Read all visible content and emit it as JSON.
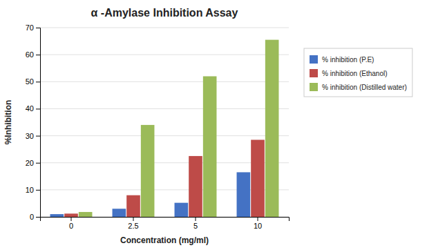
{
  "chart_data": {
    "type": "bar",
    "title": "α -Amylase Inhibition Assay",
    "xlabel": "Concentration (mg/ml)",
    "ylabel": "%Inhibition",
    "categories": [
      "0",
      "2.5",
      "5",
      "10"
    ],
    "series": [
      {
        "name": "% inhibition (P.E)",
        "color": "#4472C4",
        "values": [
          1.0,
          3.0,
          5.2,
          16.5
        ]
      },
      {
        "name": "% inhibition (Ethanol)",
        "color": "#BE4B48",
        "values": [
          1.2,
          8.0,
          22.5,
          28.5
        ]
      },
      {
        "name": "% inhibition (Distilled water)",
        "color": "#9BBB59",
        "values": [
          1.8,
          34.0,
          52.0,
          65.5
        ]
      }
    ],
    "ylim": [
      0,
      70
    ],
    "yticks": [
      0,
      10,
      20,
      30,
      40,
      50,
      60,
      70
    ],
    "grid": true,
    "legend": "right"
  }
}
